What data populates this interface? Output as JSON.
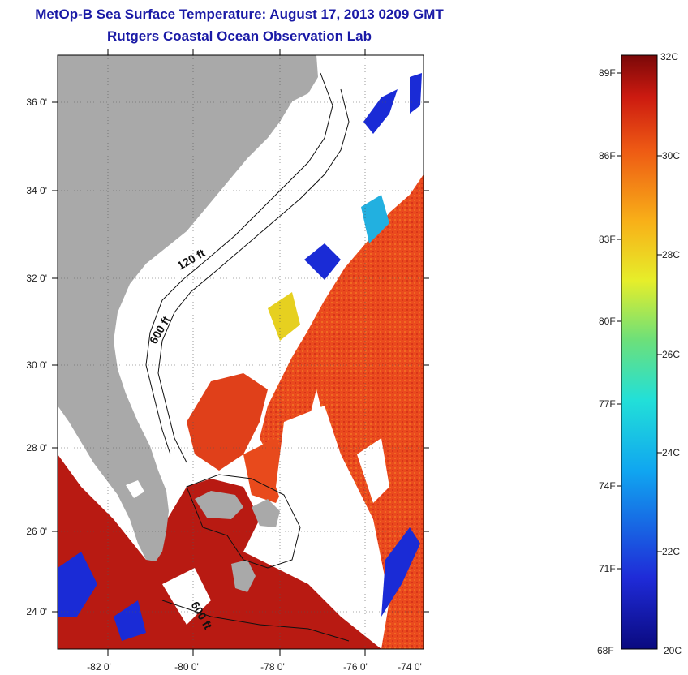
{
  "header": {
    "title_line1": "MetOp-B Sea Surface Temperature:  August 17, 2013 0209 GMT",
    "title_line2": "Rutgers Coastal Ocean Observation Lab"
  },
  "map": {
    "lat_ticks": [
      "36 0'",
      "34 0'",
      "32 0'",
      "30 0'",
      "28 0'",
      "26 0'",
      "24 0'"
    ],
    "lon_ticks": [
      "-82 0'",
      "-80 0'",
      "-78 0'",
      "-76 0'",
      "-74 0'"
    ],
    "contour_labels": [
      "120 ft",
      "600 ft",
      "600 ft"
    ],
    "colors": {
      "land": "#a9a9a9",
      "cloud": "#ffffff",
      "warm": "#e43a1a",
      "hot": "#b31212",
      "cool": "#1a2bd6"
    }
  },
  "colorbar": {
    "fahrenheit_labels": [
      "89F",
      "86F",
      "83F",
      "80F",
      "77F",
      "74F",
      "71F",
      "68F"
    ],
    "celsius_labels": [
      "32C",
      "30C",
      "28C",
      "26C",
      "24C",
      "22C",
      "20C"
    ]
  }
}
